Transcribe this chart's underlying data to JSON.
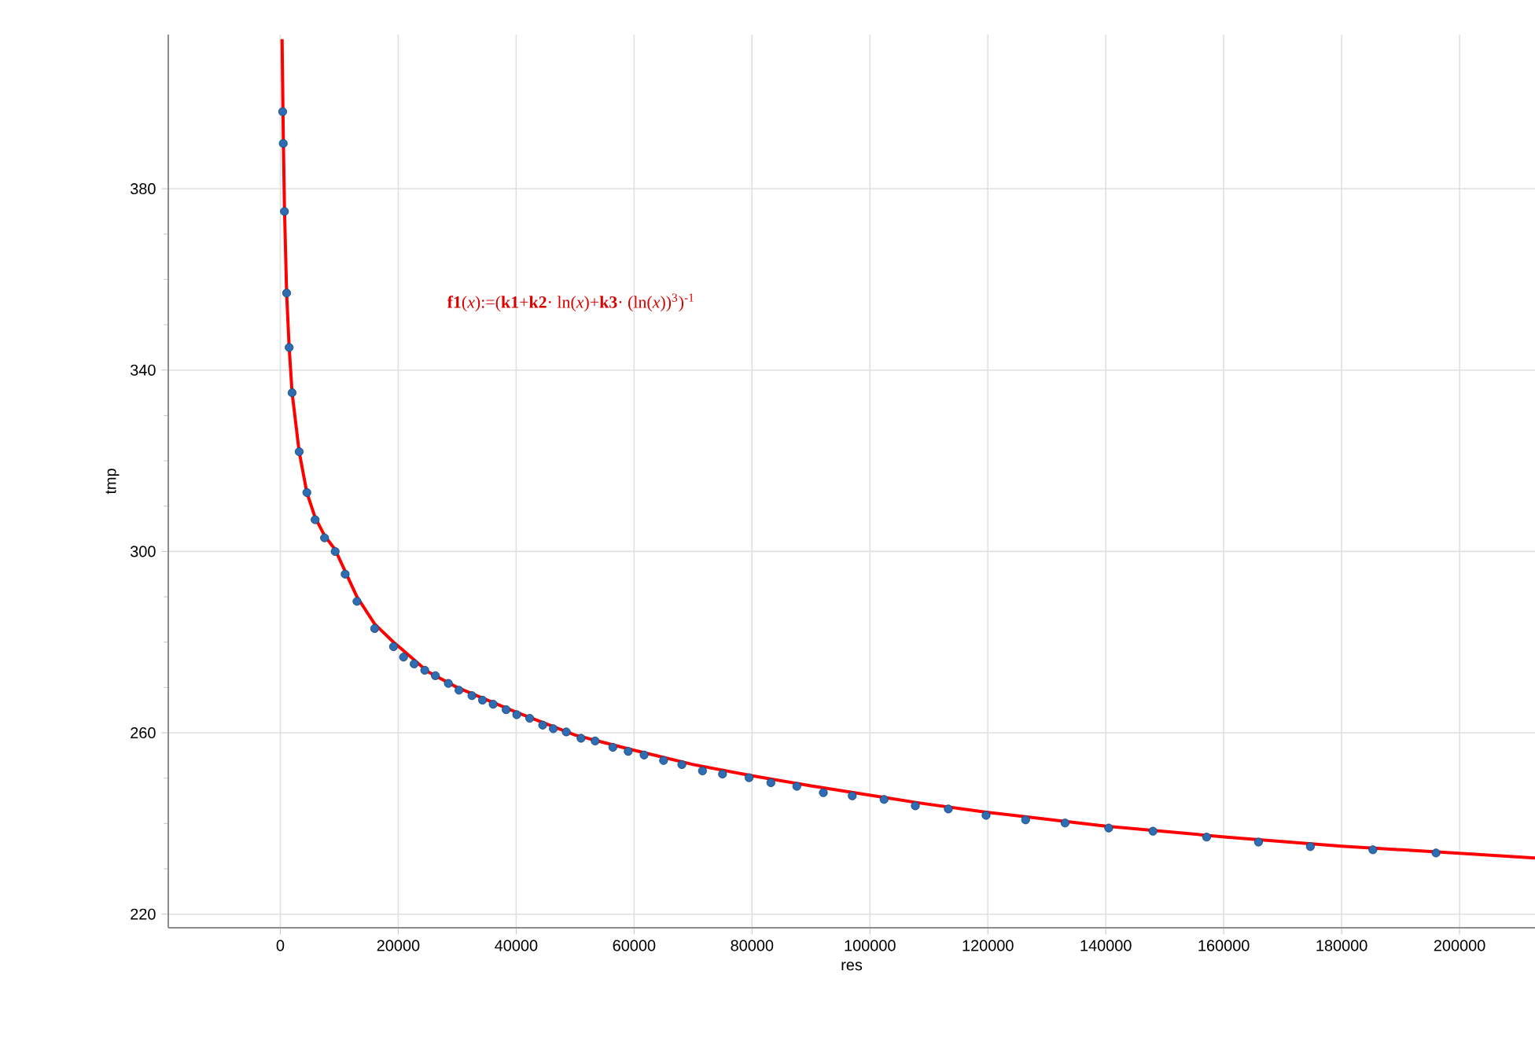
{
  "chart_data": {
    "type": "scatter",
    "xlabel": "res",
    "ylabel": "tmp",
    "annotations": [
      "**f1**(*x*):=(**k1**+**k2**· ln(*x*)+**k3**· (ln(*x*))$^{3}$)$^{-1}$"
    ],
    "xlim": [
      -19000,
      212800
    ],
    "ylim": [
      217,
      414
    ],
    "xticks": [
      0,
      20000,
      40000,
      60000,
      80000,
      100000,
      120000,
      140000,
      160000,
      180000,
      200000
    ],
    "yticks": [
      220,
      260,
      300,
      340,
      380
    ],
    "grid": true,
    "series": [
      {
        "marker": "circle",
        "color": "#2e6db4",
        "x": [
          400,
          500,
          700,
          1070,
          1500,
          2000,
          3200,
          4500,
          5900,
          7500,
          9300,
          11000,
          13000,
          16000,
          19200,
          20900,
          22700,
          24500,
          26300,
          28500,
          30300,
          32500,
          34300,
          36100,
          38300,
          40100,
          42300,
          44500,
          46300,
          48500,
          51000,
          53400,
          56400,
          59000,
          61700,
          65000,
          68100,
          71600,
          75000,
          79500,
          83200,
          87600,
          92100,
          97000,
          102400,
          107700,
          113300,
          119700,
          126400,
          133100,
          140500,
          148000,
          157100,
          165900,
          174700,
          185300,
          196000
        ],
        "values": [
          397,
          390,
          375,
          357,
          345,
          335,
          322,
          313,
          307,
          303,
          300,
          295,
          289,
          283,
          279,
          276.7,
          275.2,
          273.8,
          272.6,
          270.9,
          269.4,
          268.2,
          267.2,
          266.3,
          265.1,
          264,
          263.2,
          261.7,
          260.9,
          260.2,
          258.8,
          258.2,
          256.8,
          255.9,
          255.1,
          253.9,
          253,
          251.6,
          250.9,
          250.1,
          249,
          248.2,
          246.8,
          246.1,
          245.3,
          243.9,
          243.2,
          241.8,
          240.8,
          240.1,
          239,
          238.3,
          237,
          235.9,
          234.9,
          234.2,
          233.5
        ]
      },
      {
        "type": "line",
        "color": "#ff0000",
        "x": [
          300,
          500,
          700,
          1070,
          1500,
          2000,
          3200,
          4500,
          5900,
          7500,
          9300,
          13000,
          16000,
          19200,
          25000,
          30000,
          39700,
          50000,
          59200,
          70000,
          79700,
          90000,
          108000,
          119700,
          140000,
          160500,
          180000,
          200500,
          212800
        ],
        "values": [
          413,
          392,
          376,
          357,
          345,
          335,
          322,
          313,
          307.5,
          303.5,
          300.4,
          290,
          284,
          280,
          273.5,
          270,
          264.7,
          259.5,
          256.4,
          253,
          250.6,
          248.3,
          244.6,
          242.5,
          239.4,
          237,
          235,
          233.4,
          232.4
        ]
      }
    ]
  }
}
